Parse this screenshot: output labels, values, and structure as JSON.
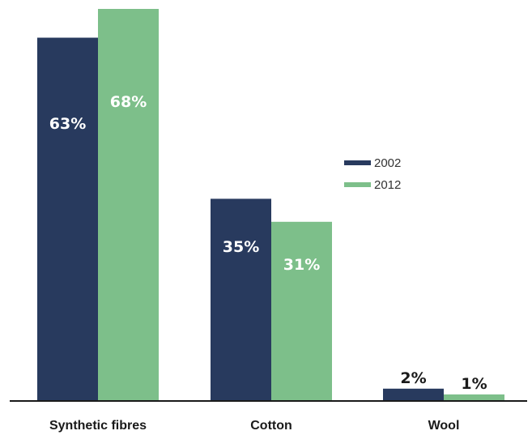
{
  "chart_data": {
    "type": "bar",
    "categories": [
      "Synthetic fibres",
      "Cotton",
      "Wool"
    ],
    "series": [
      {
        "name": "2002",
        "values": [
          63,
          35,
          2
        ],
        "labels": [
          "63%",
          "35%",
          "2%"
        ],
        "color": "#283a5e"
      },
      {
        "name": "2012",
        "values": [
          68,
          31,
          1
        ],
        "labels": [
          "68%",
          "31%",
          "1%"
        ],
        "color": "#7dbf8a"
      }
    ],
    "title": "",
    "xlabel": "",
    "ylabel": "",
    "ylim": [
      0,
      68
    ],
    "grid": false,
    "legend_position": "center-right",
    "label_colors": {
      "inside": "#ffffff",
      "outside": "#1a1a1a"
    },
    "axis_color": "#1a1a1a"
  }
}
